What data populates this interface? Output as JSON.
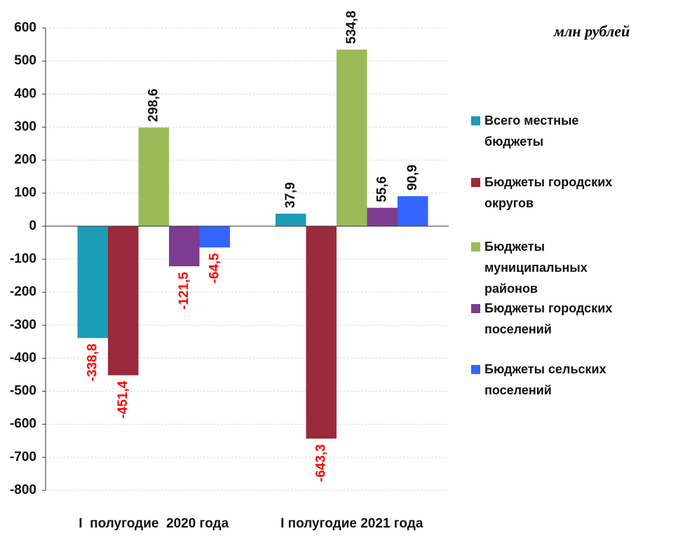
{
  "chart_data": {
    "type": "bar",
    "subtitle": "млн рублей",
    "categories": [
      "I  полугодие  2020 года",
      "I полугодие 2021 года"
    ],
    "series": [
      {
        "name": "Всего местные бюджеты",
        "color": "#1b9cb7",
        "values": [
          -338.8,
          37.9
        ],
        "value_labels": [
          "-338,8",
          "37,9"
        ]
      },
      {
        "name": "Бюджеты городских округов",
        "color": "#9b2a3c",
        "values": [
          -451.4,
          -643.3
        ],
        "value_labels": [
          "-451,4",
          "-643,3"
        ]
      },
      {
        "name": "Бюджеты муниципальных районов",
        "color": "#9bbb59",
        "values": [
          298.6,
          534.8
        ],
        "value_labels": [
          "298,6",
          "534,8"
        ]
      },
      {
        "name": "Бюджеты городских поселений",
        "color": "#7d3c8f",
        "values": [
          -121.5,
          55.6
        ],
        "value_labels": [
          "-121,5",
          "55,6"
        ]
      },
      {
        "name": "Бюджеты сельских поселений",
        "color": "#3366ff",
        "values": [
          -64.5,
          90.9
        ],
        "value_labels": [
          "-64,5",
          "90,9"
        ]
      }
    ],
    "ylim": [
      -800,
      600
    ],
    "yticks": [
      -800,
      -700,
      -600,
      -500,
      -400,
      -300,
      -200,
      -100,
      0,
      100,
      200,
      300,
      400,
      500,
      600
    ],
    "grid": true,
    "legend": "right"
  }
}
